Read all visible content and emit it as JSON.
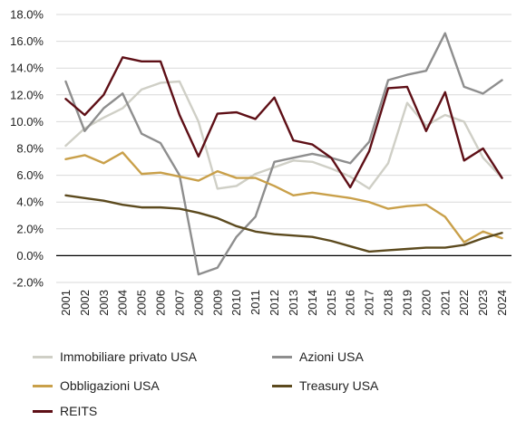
{
  "chart_data": {
    "type": "line",
    "title": "",
    "xlabel": "",
    "ylabel": "",
    "ylim": [
      -2.0,
      18.0
    ],
    "y_ticks": [
      "-2.0%",
      "0.0%",
      "2.0%",
      "4.0%",
      "6.0%",
      "8.0%",
      "10.0%",
      "12.0%",
      "14.0%",
      "16.0%",
      "18.0%"
    ],
    "y_tick_values": [
      -2,
      0,
      2,
      4,
      6,
      8,
      10,
      12,
      14,
      16,
      18
    ],
    "grid": true,
    "legend_position": "bottom",
    "x": [
      "2001",
      "2002",
      "2003",
      "2004",
      "2005",
      "2006",
      "2007",
      "2008",
      "2009",
      "2010",
      "2011",
      "2012",
      "2013",
      "2014",
      "2015",
      "2016",
      "2017",
      "2018",
      "2019",
      "2020",
      "2021",
      "2022",
      "2023",
      "2024"
    ],
    "series": [
      {
        "name": "Immobiliare privato USA",
        "color": "#cfcfc6",
        "values": [
          8.2,
          9.5,
          10.3,
          11.0,
          12.4,
          12.9,
          13.0,
          10.0,
          5.0,
          5.2,
          6.1,
          6.6,
          7.1,
          7.0,
          6.5,
          5.9,
          5.0,
          6.9,
          11.4,
          9.7,
          10.5,
          10.0,
          7.3,
          5.8
        ]
      },
      {
        "name": "Azioni USA",
        "color": "#8e8e8e",
        "values": [
          13.0,
          9.3,
          11.0,
          12.1,
          9.1,
          8.4,
          6.0,
          -1.4,
          -0.9,
          1.4,
          2.9,
          7.0,
          7.3,
          7.6,
          7.3,
          6.9,
          8.5,
          13.1,
          13.5,
          13.8,
          16.6,
          12.6,
          12.1,
          13.1
        ]
      },
      {
        "name": "Obbligazioni USA",
        "color": "#c9a04a",
        "values": [
          7.2,
          7.5,
          6.9,
          7.7,
          6.1,
          6.2,
          5.9,
          5.6,
          6.3,
          5.8,
          5.8,
          5.2,
          4.5,
          4.7,
          4.5,
          4.3,
          4.0,
          3.5,
          3.7,
          3.8,
          2.9,
          1.0,
          1.8,
          1.3
        ]
      },
      {
        "name": "Treasury USA",
        "color": "#5c4a1e",
        "values": [
          4.5,
          4.3,
          4.1,
          3.8,
          3.6,
          3.6,
          3.5,
          3.2,
          2.8,
          2.2,
          1.8,
          1.6,
          1.5,
          1.4,
          1.1,
          0.7,
          0.3,
          0.4,
          0.5,
          0.6,
          0.6,
          0.8,
          1.3,
          1.7
        ]
      },
      {
        "name": "REITS",
        "color": "#5e0f16",
        "values": [
          11.7,
          10.5,
          12.0,
          14.8,
          14.5,
          14.5,
          10.5,
          7.4,
          10.6,
          10.7,
          10.2,
          11.8,
          8.6,
          8.3,
          7.3,
          5.1,
          7.8,
          12.5,
          12.6,
          9.3,
          12.2,
          7.1,
          8.0,
          5.8
        ]
      }
    ]
  }
}
